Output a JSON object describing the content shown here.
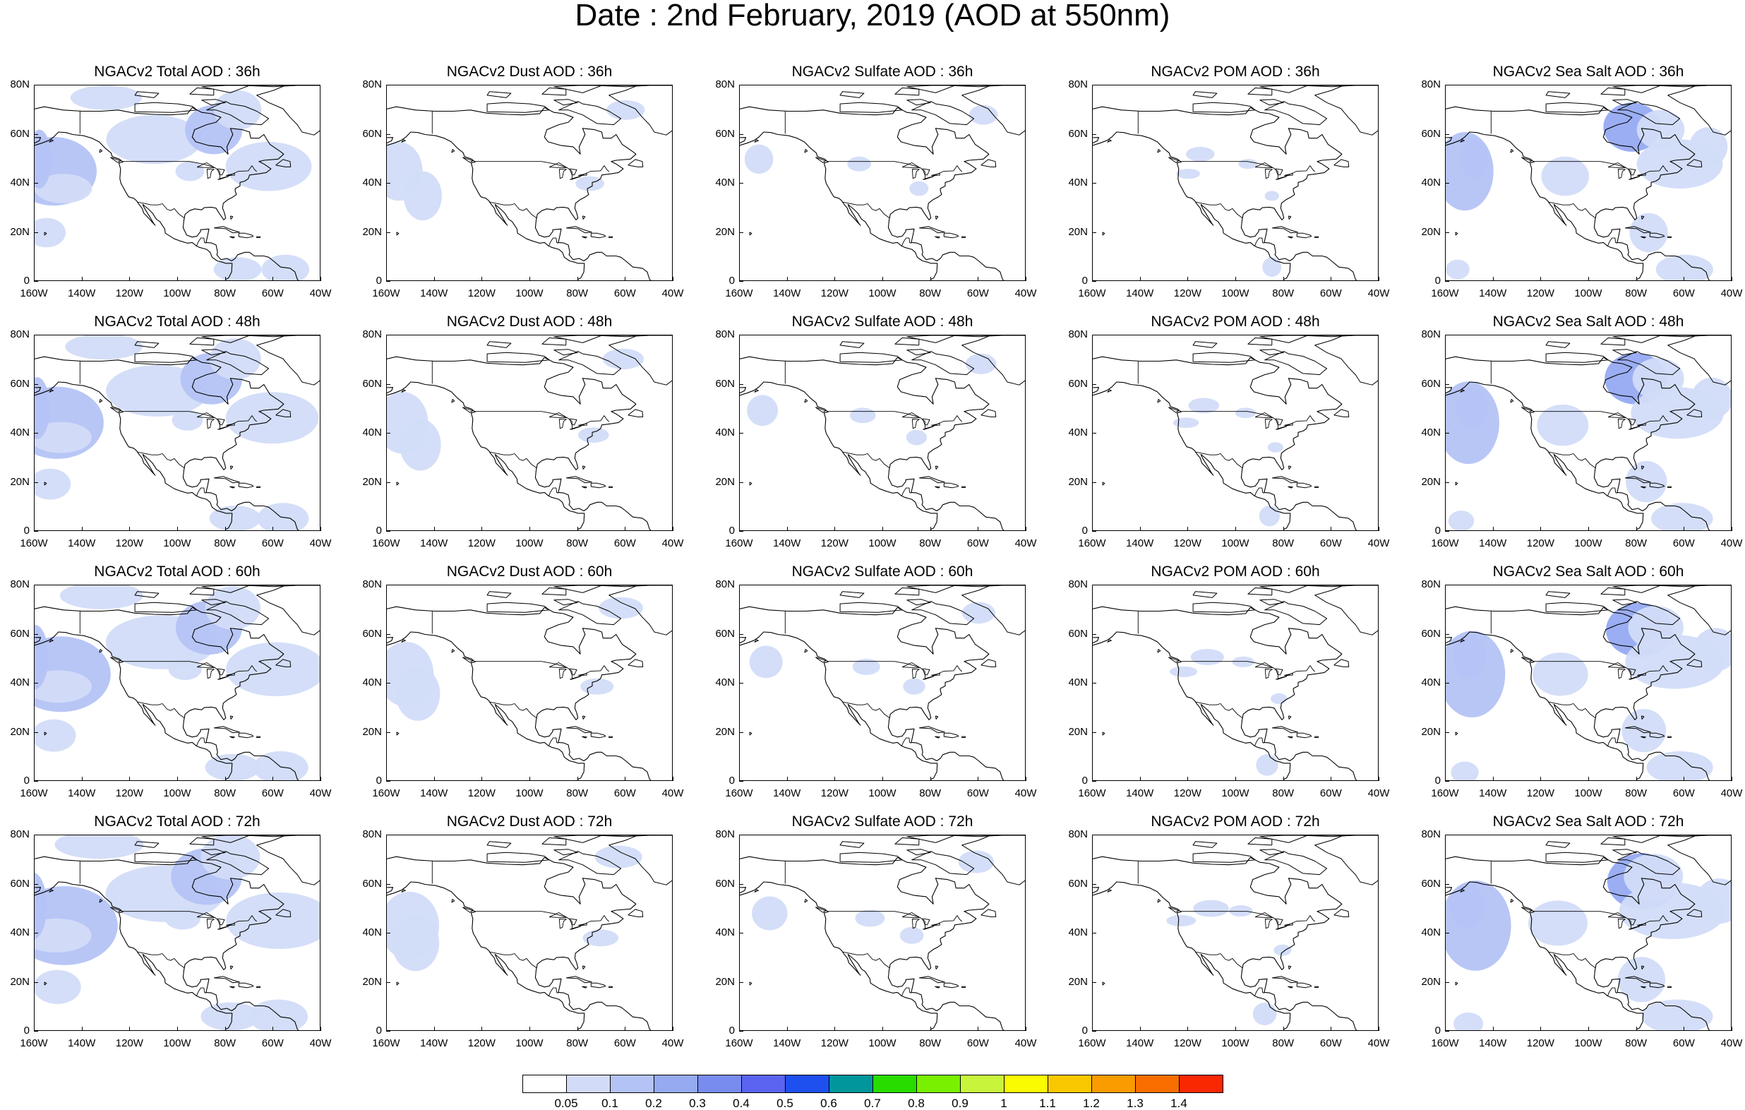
{
  "title": "Date : 2nd February, 2019 (AOD at 550nm)",
  "panels": [
    [
      "NGACv2 Total AOD : 36h",
      "NGACv2 Dust AOD : 36h",
      "NGACv2 Sulfate AOD : 36h",
      "NGACv2 POM AOD : 36h",
      "NGACv2 Sea Salt AOD : 36h"
    ],
    [
      "NGACv2 Total AOD : 48h",
      "NGACv2 Dust AOD : 48h",
      "NGACv2 Sulfate AOD : 48h",
      "NGACv2 POM AOD : 48h",
      "NGACv2 Sea Salt AOD : 48h"
    ],
    [
      "NGACv2 Total AOD : 60h",
      "NGACv2 Dust AOD : 60h",
      "NGACv2 Sulfate AOD : 60h",
      "NGACv2 POM AOD : 60h",
      "NGACv2 Sea Salt AOD : 60h"
    ],
    [
      "NGACv2 Total AOD : 72h",
      "NGACv2 Dust AOD : 72h",
      "NGACv2 Sulfate AOD : 72h",
      "NGACv2 POM AOD : 72h",
      "NGACv2 Sea Salt  AOD : 72h"
    ]
  ],
  "lat_labels": [
    "80N",
    "60N",
    "40N",
    "20N",
    "0"
  ],
  "lon_labels": [
    "160W",
    "140W",
    "120W",
    "100W",
    "80W",
    "60W",
    "40W"
  ],
  "colorbar": {
    "colors": [
      "#ffffff",
      "#d2dcf8",
      "#b4c3f5",
      "#96aaf2",
      "#788cf0",
      "#5a64f0",
      "#1e50f0",
      "#00969b",
      "#28dc00",
      "#78f000",
      "#c8f53c",
      "#fafa00",
      "#fac800",
      "#fa9b00",
      "#fa6e00",
      "#fa2800"
    ],
    "labels": [
      "0.05",
      "0.1",
      "0.2",
      "0.3",
      "0.4",
      "0.5",
      "0.6",
      "0.7",
      "0.8",
      "0.9",
      "1",
      "1.1",
      "1.2",
      "1.3",
      "1.4"
    ]
  },
  "colors": {
    "aerosol_low": "#d2dcf8",
    "aerosol_mid": "#b4c3f5",
    "aerosol_high": "#96aaf2",
    "coastline": "#000000"
  }
}
